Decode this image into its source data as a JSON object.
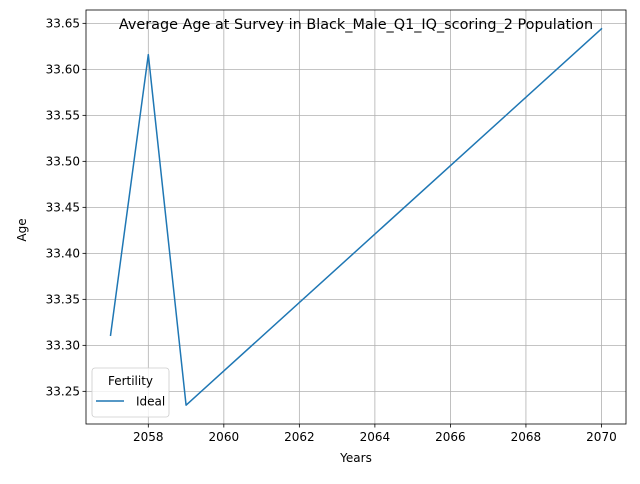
{
  "chart_data": {
    "type": "line",
    "title": "Average Age at Survey in Black_Male_Q1_IQ_scoring_2 Population",
    "xlabel": "Years",
    "ylabel": "Age",
    "xlim": [
      2056.35,
      2070.65
    ],
    "ylim": [
      33.2145,
      33.6645
    ],
    "xticks": [
      2058,
      2060,
      2062,
      2064,
      2066,
      2068,
      2070
    ],
    "yticks": [
      33.25,
      33.3,
      33.35,
      33.4,
      33.45,
      33.5,
      33.55,
      33.6,
      33.65
    ],
    "grid": true,
    "legend": {
      "title": "Fertility",
      "position": "lower-left"
    },
    "series": [
      {
        "name": "Ideal",
        "color": "#1f77b4",
        "x": [
          2057,
          2058,
          2059,
          2070
        ],
        "y": [
          33.311,
          33.616,
          33.235,
          33.644
        ]
      }
    ]
  }
}
